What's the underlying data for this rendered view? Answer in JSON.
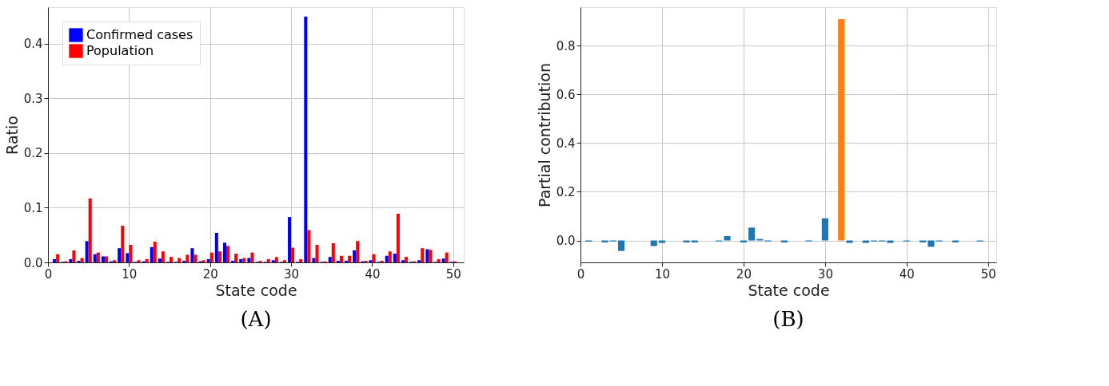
{
  "chart_data": [
    {
      "type": "bar",
      "x": [
        1,
        2,
        3,
        4,
        5,
        6,
        7,
        8,
        9,
        10,
        11,
        12,
        13,
        14,
        15,
        16,
        17,
        18,
        19,
        20,
        21,
        22,
        23,
        24,
        25,
        26,
        27,
        28,
        29,
        30,
        31,
        32,
        33,
        34,
        35,
        36,
        37,
        38,
        39,
        40,
        41,
        42,
        43,
        44,
        45,
        46,
        47,
        48,
        49,
        50
      ],
      "series": [
        {
          "name": "Confirmed cases",
          "color": "#0000ff",
          "values": [
            0.006,
            0.001,
            0.006,
            0.003,
            0.039,
            0.015,
            0.011,
            0.002,
            0.026,
            0.017,
            0.001,
            0.002,
            0.028,
            0.007,
            0.001,
            0.001,
            0.003,
            0.026,
            0.002,
            0.006,
            0.054,
            0.036,
            0.003,
            0.006,
            0.008,
            0.001,
            0.001,
            0.004,
            0.001,
            0.083,
            0.001,
            0.45,
            0.008,
            0.001,
            0.01,
            0.003,
            0.003,
            0.022,
            0.002,
            0.004,
            0.001,
            0.012,
            0.016,
            0.004,
            0.001,
            0.004,
            0.024,
            0.001,
            0.007,
            0.001
          ]
        },
        {
          "name": "Population",
          "color": "#ff0000",
          "values": [
            0.015,
            0.002,
            0.022,
            0.008,
            0.117,
            0.018,
            0.011,
            0.004,
            0.067,
            0.032,
            0.004,
            0.006,
            0.038,
            0.02,
            0.01,
            0.008,
            0.014,
            0.014,
            0.004,
            0.018,
            0.02,
            0.03,
            0.016,
            0.008,
            0.018,
            0.003,
            0.006,
            0.01,
            0.004,
            0.027,
            0.006,
            0.059,
            0.032,
            0.002,
            0.035,
            0.012,
            0.012,
            0.039,
            0.003,
            0.015,
            0.003,
            0.02,
            0.089,
            0.01,
            0.002,
            0.026,
            0.023,
            0.006,
            0.018,
            0.002
          ]
        }
      ],
      "xlabel": "State code",
      "ylabel": "Ratio",
      "xlim": [
        0,
        51.3
      ],
      "ylim": [
        0,
        0.467
      ],
      "xticks": [
        0,
        10,
        20,
        30,
        40,
        50
      ],
      "yticks": [
        {
          "value": 0,
          "label": "0.0"
        },
        0.1,
        0.2,
        0.3,
        0.4
      ],
      "grid": true,
      "legend": "top left",
      "annotations": [
        "(A)"
      ]
    },
    {
      "type": "bar",
      "x": [
        1,
        2,
        3,
        4,
        5,
        6,
        7,
        8,
        9,
        10,
        11,
        12,
        13,
        14,
        15,
        16,
        17,
        18,
        19,
        20,
        21,
        22,
        23,
        24,
        25,
        26,
        27,
        28,
        29,
        30,
        31,
        32,
        33,
        34,
        35,
        36,
        37,
        38,
        39,
        40,
        41,
        42,
        43,
        44,
        45,
        46,
        47,
        48,
        49
      ],
      "values": [
        -0.005,
        null,
        -0.008,
        -0.004,
        -0.043,
        null,
        null,
        null,
        -0.023,
        -0.01,
        null,
        null,
        -0.008,
        -0.008,
        null,
        null,
        -0.004,
        0.018,
        null,
        -0.008,
        0.053,
        0.006,
        -0.004,
        null,
        -0.008,
        null,
        null,
        -0.004,
        null,
        0.091,
        null,
        0.909,
        -0.01,
        null,
        -0.01,
        -0.004,
        -0.004,
        -0.01,
        null,
        -0.004,
        null,
        -0.008,
        -0.026,
        -0.004,
        null,
        -0.008,
        null,
        null,
        -0.004
      ],
      "colors": [
        "#1f77b4",
        "#1f77b4",
        "#1f77b4",
        "#1f77b4",
        "#1f77b4",
        "#1f77b4",
        "#1f77b4",
        "#1f77b4",
        "#1f77b4",
        "#1f77b4",
        "#1f77b4",
        "#1f77b4",
        "#1f77b4",
        "#1f77b4",
        "#1f77b4",
        "#1f77b4",
        "#1f77b4",
        "#1f77b4",
        "#1f77b4",
        "#1f77b4",
        "#1f77b4",
        "#1f77b4",
        "#1f77b4",
        "#1f77b4",
        "#1f77b4",
        "#1f77b4",
        "#1f77b4",
        "#1f77b4",
        "#1f77b4",
        "#1f77b4",
        "#1f77b4",
        "#ff7f0e",
        "#1f77b4",
        "#1f77b4",
        "#1f77b4",
        "#1f77b4",
        "#1f77b4",
        "#1f77b4",
        "#1f77b4",
        "#1f77b4",
        "#1f77b4",
        "#1f77b4",
        "#1f77b4",
        "#1f77b4",
        "#1f77b4",
        "#1f77b4",
        "#1f77b4",
        "#1f77b4",
        "#1f77b4"
      ],
      "xlabel": "State code",
      "ylabel": "Partial contribution",
      "xlim": [
        0,
        51
      ],
      "ylim": [
        -0.09,
        0.958
      ],
      "xticks": [
        0,
        10,
        20,
        30,
        40,
        50
      ],
      "yticks": [
        {
          "value": 0,
          "label": "0.0"
        },
        0.2,
        0.4,
        0.6,
        0.8
      ],
      "grid": true,
      "annotations": [
        "(B)"
      ]
    }
  ]
}
